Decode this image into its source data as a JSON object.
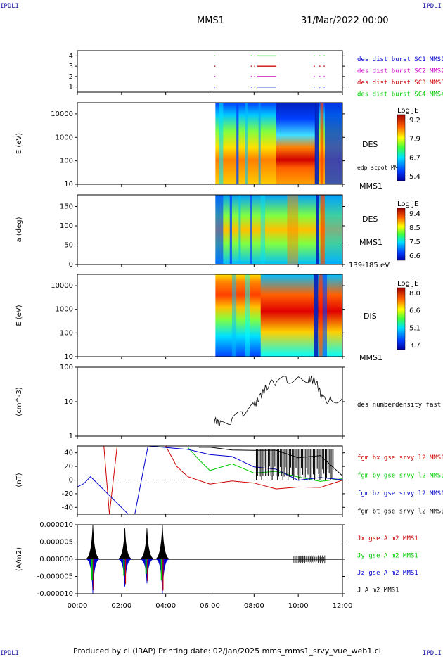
{
  "corners": {
    "tl": "IPDLI",
    "tr": "IPDLI",
    "bl": "IPDLI",
    "br": "IPDLI"
  },
  "header": {
    "title": "MMS1",
    "datetime": "31/Mar/2022 00:00"
  },
  "footer": {
    "text": "Produced by cl (IRAP)   Printing date: 02/Jan/2025   mms_mms1_srvy_vue_web1.cl"
  },
  "colors": {
    "mms1": "#0000cc",
    "mms2": "#cc00cc",
    "mms3": "#cc0000",
    "mms4": "#00cc00",
    "black": "#000000"
  },
  "chart_data": [
    {
      "type": "scatter",
      "name": "burst-availability",
      "y_ticks": [
        "1",
        "2",
        "3",
        "4"
      ],
      "ylim": [
        0.5,
        4.5
      ],
      "legend": [
        "des dist burst SC1 MMS1",
        "des dist burst SC2 MMS2",
        "des dist burst SC3 MMS3",
        "des dist burst SC4 MMS4"
      ],
      "legend_colors": [
        "#0000cc",
        "#cc00cc",
        "#cc0000",
        "#00cc00"
      ],
      "intervals_hours": [
        [
          6.2,
          6.22
        ],
        [
          7.85,
          7.9
        ],
        [
          8.0,
          8.03
        ],
        [
          8.15,
          9.0
        ],
        [
          10.7,
          10.75
        ],
        [
          10.95,
          11.0
        ],
        [
          11.15,
          11.2
        ]
      ]
    },
    {
      "type": "heatmap",
      "name": "des-energy-spectrogram",
      "ylabel": "E (eV)",
      "y_ticks": [
        "10",
        "100",
        "1000",
        "10000"
      ],
      "ylim": [
        10,
        30000
      ],
      "right_labels": [
        "DES",
        "edp scpot MMS1",
        "MMS1"
      ],
      "colorbar": {
        "title": "Log JE",
        "ticks": [
          "9.2",
          "7.9",
          "6.7",
          "5.4"
        ]
      }
    },
    {
      "type": "heatmap",
      "name": "des-pitch-angle",
      "ylabel": "a (deg)",
      "y_ticks": [
        "0",
        "50",
        "100",
        "150"
      ],
      "ylim": [
        0,
        180
      ],
      "right_labels": [
        "DES",
        "MMS1",
        "139-185 eV"
      ],
      "colorbar": {
        "title": "Log JE",
        "ticks": [
          "9.4",
          "8.5",
          "7.5",
          "6.6"
        ]
      }
    },
    {
      "type": "heatmap",
      "name": "dis-energy-spectrogram",
      "ylabel": "E (eV)",
      "y_ticks": [
        "10",
        "100",
        "1000",
        "10000"
      ],
      "ylim": [
        10,
        30000
      ],
      "right_labels": [
        "DIS",
        "MMS1"
      ],
      "colorbar": {
        "title": "Log JE",
        "ticks": [
          "8.0",
          "6.6",
          "5.1",
          "3.7"
        ]
      }
    },
    {
      "type": "line",
      "name": "density",
      "ylabel": "(cm^-3)",
      "y_ticks": [
        "1",
        "10",
        "100"
      ],
      "ylim": [
        1,
        100
      ],
      "legend": [
        "des numberdensity fast M"
      ],
      "series": [
        {
          "name": "des numberdensity fast M",
          "x": [
            6.2,
            6.5,
            7.0,
            7.5,
            8.0,
            8.3,
            8.6,
            9.0,
            9.5,
            10.0,
            10.5,
            10.8,
            11.1,
            11.5,
            12.0
          ],
          "y": [
            3.0,
            2.2,
            3.0,
            5.0,
            8.0,
            15.0,
            30.0,
            40.0,
            45.0,
            45.0,
            48.0,
            40.0,
            12.0,
            11.5,
            13.0
          ]
        }
      ]
    },
    {
      "type": "line",
      "name": "magnetic-field",
      "ylabel": "(nT)",
      "y_ticks": [
        "-40",
        "-20",
        "0",
        "20",
        "40"
      ],
      "ylim": [
        -50,
        50
      ],
      "legend": [
        "fgm bx gse srvy l2 MMS1",
        "fgm by gse srvy l2 MMS1",
        "fgm bz gse srvy l2 MMS1",
        "fgm bt gse srvy l2 MMS1"
      ],
      "legend_colors": [
        "#cc0000",
        "#00cc00",
        "#0000cc",
        "#000000"
      ],
      "series": [
        {
          "name": "fgm bx gse srvy l2 MMS1",
          "x": [
            1.2,
            1.45,
            1.8,
            4.0,
            4.5,
            5.0,
            6.0,
            7.0,
            8.0,
            9.0,
            10.0,
            11.0,
            12.0
          ],
          "y": [
            50,
            -50,
            50,
            50,
            20,
            5,
            -2,
            -3,
            -5,
            -10,
            -15,
            -5,
            -6
          ]
        },
        {
          "name": "fgm by gse srvy l2 MMS1",
          "x": [
            5.0,
            5.5,
            6.0,
            7.0,
            8.0,
            9.0,
            10.0,
            11.0,
            12.0
          ],
          "y": [
            48,
            30,
            20,
            18,
            15,
            10,
            5,
            0,
            -2
          ]
        },
        {
          "name": "fgm bz gse srvy l2 MMS1",
          "x": [
            0.0,
            0.3,
            0.6,
            2.3,
            2.6,
            3.2,
            5.0,
            6.0,
            7.0,
            8.0,
            9.0,
            10.0,
            11.0,
            12.0
          ],
          "y": [
            -10,
            -5,
            5,
            -50,
            -50,
            50,
            45,
            40,
            30,
            25,
            10,
            5,
            0,
            2
          ]
        },
        {
          "name": "fgm bt gse srvy l2 MMS1",
          "x": [
            5.5,
            6.0,
            7.0,
            8.0,
            9.0,
            10.0,
            11.0,
            12.0
          ],
          "y": [
            48,
            45,
            45,
            45,
            40,
            38,
            30,
            12
          ]
        }
      ]
    },
    {
      "type": "line",
      "name": "current-density",
      "ylabel": "(A/m2)",
      "y_ticks": [
        "-0.000010",
        "-0.000005",
        "0.000000",
        "0.000005",
        "0.000010"
      ],
      "ylim": [
        -1e-05,
        1e-05
      ],
      "legend": [
        "Jx gse A m2 MMS1",
        "Jy gse A m2 MMS1",
        "Jz gse A m2 MMS1",
        "J A m2 MMS1"
      ],
      "legend_colors": [
        "#cc0000",
        "#00cc00",
        "#0000cc",
        "#000000"
      ],
      "x_ticks": [
        "00:00",
        "02:00",
        "04:00",
        "06:00",
        "08:00",
        "10:00",
        "12:00"
      ],
      "xlim": [
        0,
        12
      ]
    }
  ]
}
